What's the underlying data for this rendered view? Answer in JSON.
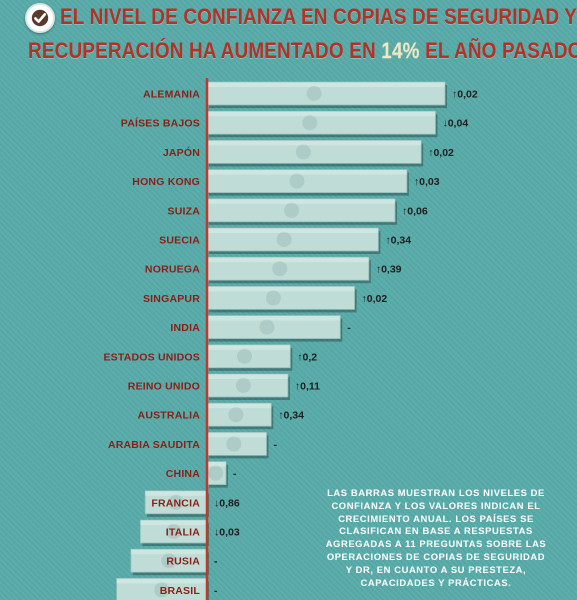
{
  "title_line1": "EL NIVEL DE CONFIANZA EN COPIAS DE SEGURIDAD Y",
  "title_line2_prefix": "RECUPERACIÓN HA AUMENTADO EN",
  "title_line2_pct": "14%",
  "title_line2_suffix": "EL AÑO PASADO.",
  "note": "LAS BARRAS MUESTRAN LOS NIVELES DE CONFIANZA Y LOS VALORES INDICAN EL CRECIMIENTO ANUAL. LOS PAÍSES SE CLASIFICAN EN BASE A RESPUESTAS AGREGADAS A 11 PREGUNTAS SOBRE LAS OPERACIONES DE COPIAS DE SEGURIDAD Y DR, EN CUANTO A SU PRESTEZA, CAPACIDADES Y PRÁCTICAS.",
  "colors": {
    "background": "#57aaa8",
    "title": "#b43126",
    "title_highlight": "#f3e6c2",
    "country_label": "#8b1f17",
    "axis_line": "#c0392b",
    "bar_fill": "#bfdcd6",
    "note_text": "#ffffff"
  },
  "chart_data": {
    "type": "bar",
    "orientation": "horizontal",
    "axis": "relative confidence level (no numeric axis shown)",
    "categories": [
      "ALEMANIA",
      "PAÍSES BAJOS",
      "JAPÓN",
      "HONG KONG",
      "SUIZA",
      "SUECIA",
      "NORUEGA",
      "SINGAPUR",
      "INDIA",
      "ESTADOS UNIDOS",
      "REINO UNIDO",
      "AUSTRALIA",
      "ARABIA SAUDITA",
      "CHINA",
      "FRANCIA",
      "ITALIA",
      "RUSIA",
      "BRASIL"
    ],
    "values": [
      100,
      96,
      90,
      84,
      79,
      72,
      68,
      62,
      56,
      35,
      34,
      27,
      25,
      8,
      -26,
      -28,
      -32,
      -38
    ],
    "growth_labels": [
      "↑0,02",
      "↓0,04",
      "↑0,02",
      "↑0,03",
      "↑0,06",
      "↑0,34",
      "↑0,39",
      "↑0,02",
      "-",
      "↑0,2",
      "↑0,11",
      "↑0,34",
      "-",
      "-",
      "↓0,86",
      "↓0,03",
      "-",
      "-"
    ],
    "flag_icons": [
      "germany-flag-icon",
      "netherlands-flag-icon",
      "japan-flag-icon",
      "hong-kong-flag-icon",
      "switzerland-flag-icon",
      "sweden-flag-icon",
      "norway-flag-icon",
      "singapore-flag-icon",
      "india-flag-icon",
      "usa-flag-icon",
      "uk-flag-icon",
      "australia-flag-icon",
      "saudi-arabia-flag-icon",
      "china-flag-icon",
      "france-flag-icon",
      "italy-flag-icon",
      "russia-flag-icon",
      "brazil-flag-icon"
    ]
  }
}
